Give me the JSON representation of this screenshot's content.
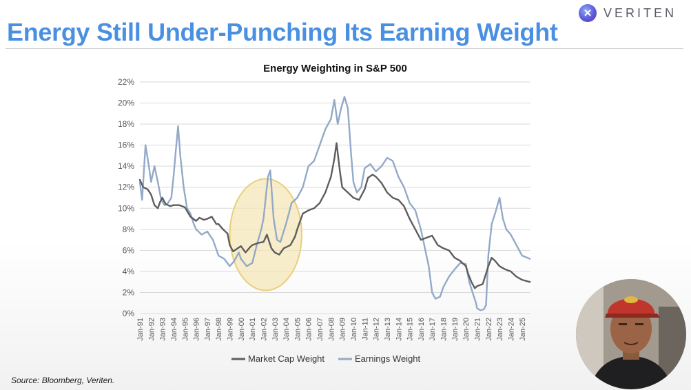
{
  "title": "Energy Still Under-Punching Its Earning Weight",
  "brand": {
    "name": "VERITEN",
    "logo_icon": "veriten-logo-icon"
  },
  "source": "Source: Bloomberg, Veriten.",
  "colors": {
    "title": "#4a90e2",
    "market_cap": "#5d5d5d",
    "earnings": "#93a9c8",
    "highlight": "#f5e5b4"
  },
  "chart_data": {
    "type": "line",
    "title": "Energy Weighting in S&P 500",
    "xlabel": "",
    "ylabel": "",
    "ylim": [
      0,
      22
    ],
    "y_ticks": [
      "0%",
      "2%",
      "4%",
      "6%",
      "8%",
      "10%",
      "12%",
      "14%",
      "16%",
      "18%",
      "20%",
      "22%"
    ],
    "x_range": [
      1991,
      2025.75
    ],
    "x_tick_labels": [
      "Jan-91",
      "Jan-92",
      "Jan-93",
      "Jan-94",
      "Jan-95",
      "Jan-96",
      "Jan-97",
      "Jan-98",
      "Jan-99",
      "Jan-00",
      "Jan-01",
      "Jan-02",
      "Jan-03",
      "Jan-04",
      "Jan-05",
      "Jan-06",
      "Jan-07",
      "Jan-08",
      "Jan-09",
      "Jan-10",
      "Jan-11",
      "Jan-12",
      "Jan-13",
      "Jan-14",
      "Jan-15",
      "Jan-16",
      "Jan-17",
      "Jan-18",
      "Jan-19",
      "Jan-20",
      "Jan-21",
      "Jan-22",
      "Jan-23",
      "Jan-24",
      "Jan-25"
    ],
    "grid": true,
    "legend": "bottom-center",
    "highlight": {
      "x_center": 2002.2,
      "y_center": 7.5,
      "x_radius": 3.2,
      "y_radius": 5.3
    },
    "series": [
      {
        "name": "Market Cap Weight",
        "color": "#5d5d5d",
        "x": [
          1991,
          1991.3,
          1991.7,
          1992,
          1992.3,
          1992.6,
          1992.8,
          1993,
          1993.3,
          1993.7,
          1994,
          1994.5,
          1995,
          1995.5,
          1996,
          1996.3,
          1996.7,
          1997,
          1997.4,
          1997.8,
          1998,
          1998.4,
          1998.8,
          1999,
          1999.3,
          1999.7,
          2000,
          2000.4,
          2000.8,
          2001,
          2001.5,
          2002,
          2002.3,
          2002.7,
          2003,
          2003.4,
          2003.8,
          2004,
          2004.4,
          2004.8,
          2005,
          2005.5,
          2006,
          2006.5,
          2007,
          2007.5,
          2008,
          2008.3,
          2008.5,
          2008.8,
          2009,
          2009.5,
          2010,
          2010.5,
          2011,
          2011.3,
          2011.7,
          2012,
          2012.5,
          2013,
          2013.5,
          2014,
          2014.5,
          2015,
          2015.5,
          2016,
          2016.5,
          2017,
          2017.5,
          2018,
          2018.5,
          2019,
          2019.5,
          2020,
          2020.2,
          2020.5,
          2020.8,
          2021,
          2021.5,
          2021.8,
          2022,
          2022.3,
          2022.6,
          2023,
          2023.5,
          2024,
          2024.5,
          2025,
          2025.7
        ],
        "values": [
          12.7,
          12.0,
          11.8,
          11.3,
          10.3,
          10.0,
          10.6,
          11.0,
          10.4,
          10.2,
          10.3,
          10.3,
          10.1,
          9.2,
          8.8,
          9.1,
          8.9,
          9.0,
          9.2,
          8.5,
          8.5,
          8.0,
          7.6,
          6.5,
          5.9,
          6.2,
          6.4,
          5.8,
          6.3,
          6.5,
          6.7,
          6.8,
          7.5,
          6.2,
          5.8,
          5.6,
          6.2,
          6.3,
          6.5,
          7.3,
          8.0,
          9.5,
          9.8,
          10.0,
          10.5,
          11.5,
          13.0,
          14.7,
          16.2,
          13.5,
          12.0,
          11.5,
          11.0,
          10.8,
          11.8,
          12.9,
          13.2,
          13.0,
          12.4,
          11.5,
          11.0,
          10.8,
          10.2,
          9.0,
          8.0,
          7.0,
          7.2,
          7.4,
          6.5,
          6.2,
          6.0,
          5.3,
          5.0,
          4.5,
          3.8,
          3.0,
          2.4,
          2.6,
          2.8,
          3.8,
          4.5,
          5.3,
          5.0,
          4.5,
          4.2,
          4.0,
          3.5,
          3.2,
          3.0
        ]
      },
      {
        "name": "Earnings Weight",
        "color": "#93a9c8",
        "x": [
          1991,
          1991.2,
          1991.5,
          1991.8,
          1992,
          1992.3,
          1992.6,
          1992.9,
          1993.2,
          1993.5,
          1993.8,
          1994,
          1994.2,
          1994.4,
          1994.6,
          1994.9,
          1995.2,
          1995.5,
          1995.8,
          1996,
          1996.5,
          1997,
          1997.5,
          1998,
          1998.5,
          1999,
          1999.4,
          1999.8,
          2000,
          2000.5,
          2001,
          2001.4,
          2001.8,
          2002,
          2002.2,
          2002.4,
          2002.6,
          2002.9,
          2003.2,
          2003.5,
          2004,
          2004.5,
          2005,
          2005.5,
          2006,
          2006.5,
          2007,
          2007.5,
          2008,
          2008.3,
          2008.6,
          2008.9,
          2009.2,
          2009.5,
          2009.8,
          2010,
          2010.3,
          2010.7,
          2011,
          2011.5,
          2012,
          2012.5,
          2013,
          2013.5,
          2014,
          2014.5,
          2015,
          2015.5,
          2016,
          2016.3,
          2016.7,
          2017,
          2017.3,
          2017.7,
          2018,
          2018.5,
          2019,
          2019.5,
          2020,
          2020.3,
          2020.6,
          2020.9,
          2021,
          2021.3,
          2021.6,
          2021.8,
          2022,
          2022.3,
          2022.6,
          2023,
          2023.3,
          2023.6,
          2024,
          2024.5,
          2025,
          2025.7
        ],
        "values": [
          12.5,
          10.8,
          16.0,
          14.0,
          12.5,
          14.0,
          12.5,
          10.8,
          10.3,
          10.5,
          11.0,
          13.0,
          15.5,
          17.8,
          15.0,
          12.0,
          10.0,
          9.5,
          8.5,
          8.0,
          7.5,
          7.8,
          7.0,
          5.5,
          5.2,
          4.5,
          5.0,
          5.8,
          5.2,
          4.5,
          4.8,
          6.5,
          8.0,
          9.0,
          11.0,
          13.0,
          13.6,
          9.0,
          7.0,
          6.8,
          8.5,
          10.5,
          11.0,
          12.0,
          14.0,
          14.5,
          16.0,
          17.5,
          18.5,
          20.3,
          18.0,
          19.5,
          20.6,
          19.5,
          15.0,
          12.5,
          11.5,
          12.0,
          13.8,
          14.2,
          13.5,
          14.0,
          14.8,
          14.5,
          13.0,
          12.0,
          10.5,
          9.8,
          8.0,
          6.5,
          4.5,
          2.0,
          1.4,
          1.6,
          2.5,
          3.5,
          4.2,
          4.8,
          4.7,
          3.0,
          2.0,
          1.0,
          0.5,
          0.3,
          0.4,
          0.8,
          5.5,
          8.5,
          9.5,
          11.0,
          9.0,
          8.0,
          7.5,
          6.5,
          5.5,
          5.2
        ]
      }
    ]
  }
}
